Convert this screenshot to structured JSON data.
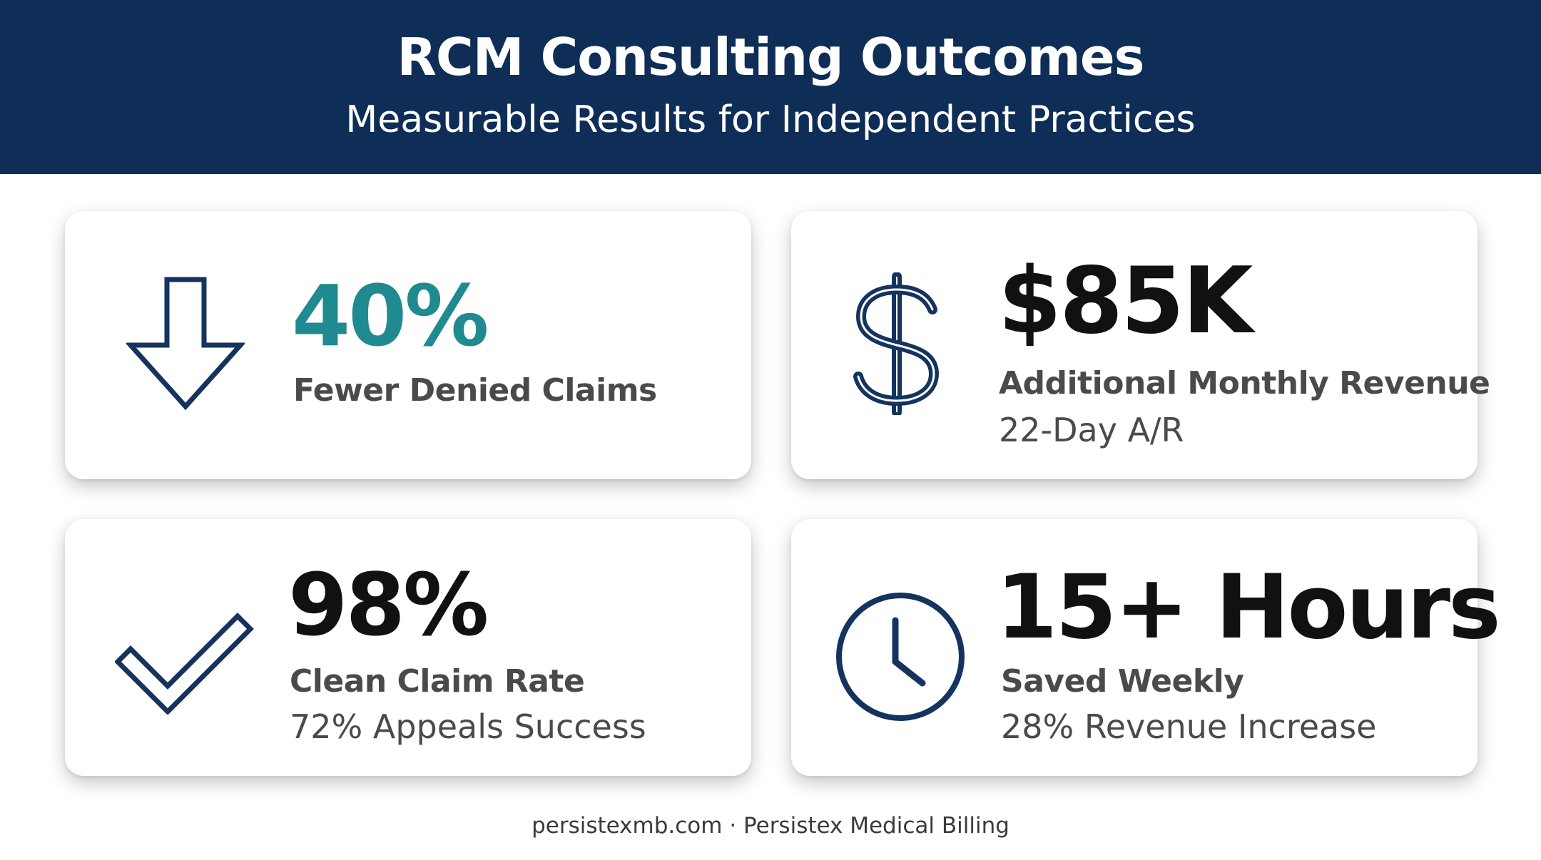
{
  "header": {
    "title": "RCM Consulting Outcomes",
    "subtitle": "Measurable Results for Independent Practices"
  },
  "colors": {
    "header_bg": "#0e2d57",
    "icon_stroke": "#14335e",
    "accent_teal": "#1f8a90",
    "value_dark": "#111111",
    "label_gray": "#4a4a4a"
  },
  "cards": [
    {
      "icon": "arrow-down-icon",
      "value": "40%",
      "label": "Fewer Denied Claims",
      "sub": ""
    },
    {
      "icon": "dollar-icon",
      "value": "$85K",
      "label": "Additional Monthly Revenue",
      "sub": "22-Day A/R"
    },
    {
      "icon": "checkmark-icon",
      "value": "98%",
      "label": "Clean Claim Rate",
      "sub": "72% Appeals Success"
    },
    {
      "icon": "clock-icon",
      "value": "15+ Hours",
      "label": "Saved Weekly",
      "sub": "28% Revenue Increase"
    }
  ],
  "footer": {
    "text": "persistexmb.com · Persistex Medical Billing"
  }
}
